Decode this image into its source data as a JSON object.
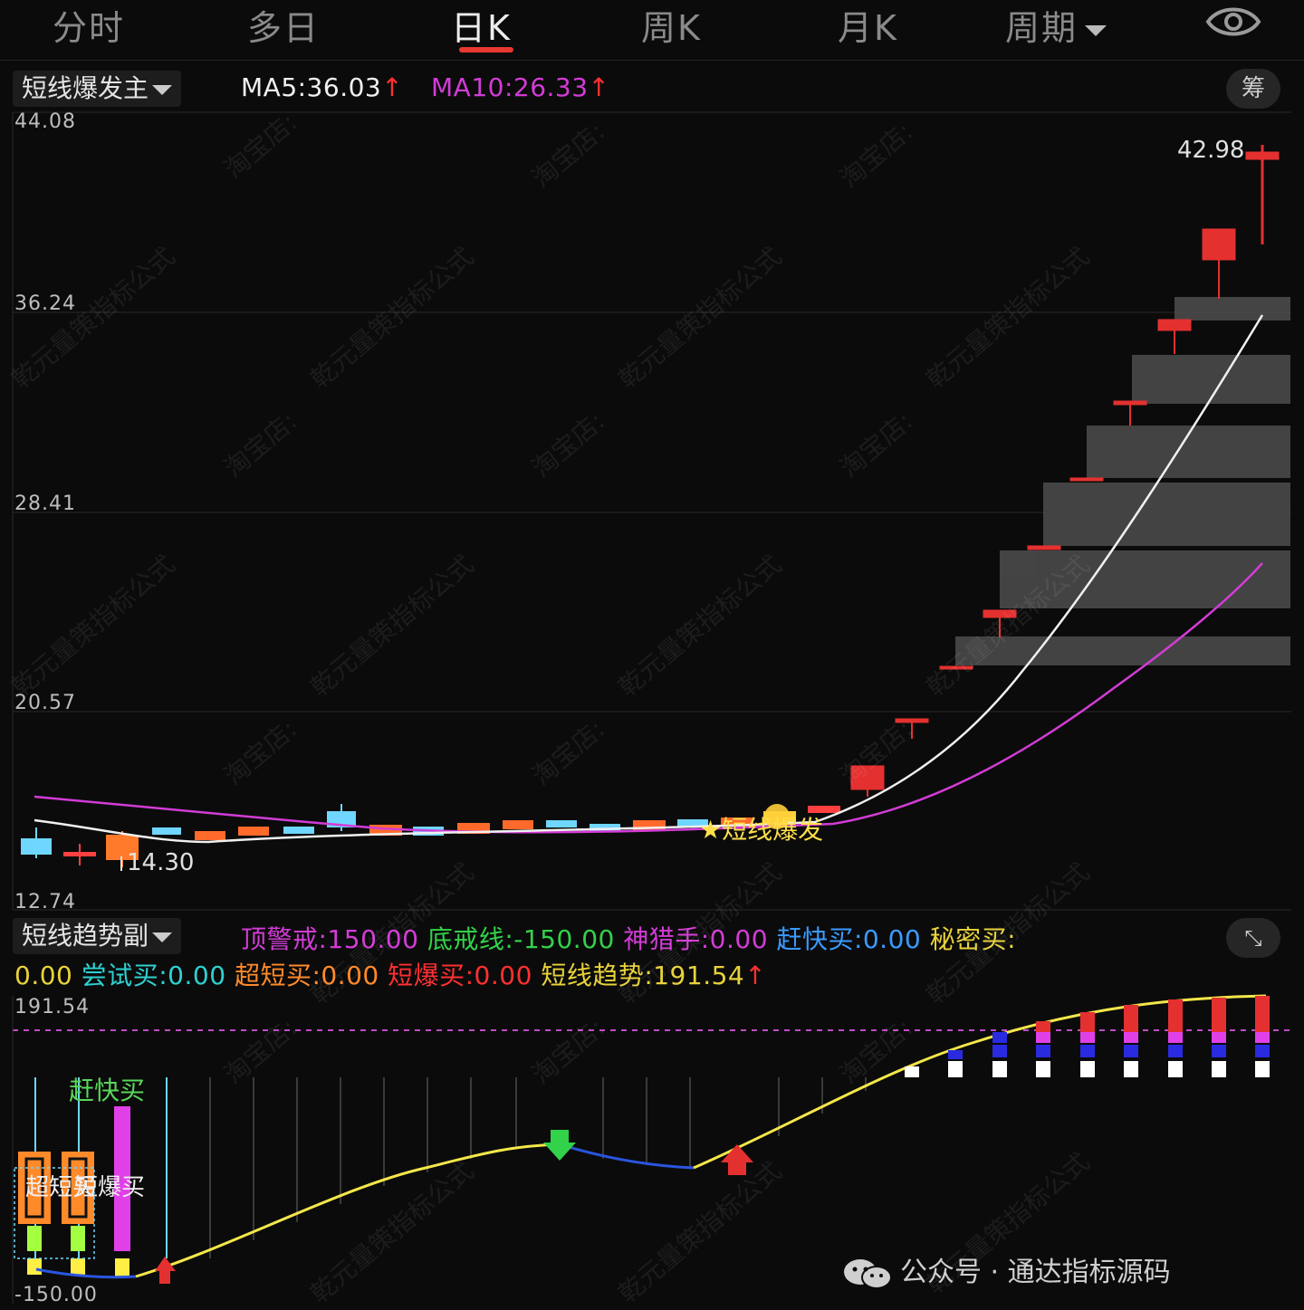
{
  "tabs": [
    "分时",
    "多日",
    "日K",
    "周K",
    "月K",
    "周期"
  ],
  "active_tab": "日K",
  "main_panel": {
    "indicator": "短线爆发主",
    "ma5": "MA5:36.03",
    "ma10": "MA10:26.33",
    "ma5_color": "#f0f0f0",
    "ma10_color": "#d23cd6",
    "chip_button": "筹",
    "y_labels": [
      "44.08",
      "36.24",
      "28.41",
      "20.57",
      "12.74"
    ],
    "high_label": "42.98",
    "low_label": "14.30",
    "signal_label": "★短线爆发"
  },
  "sub_panel": {
    "indicator": "短线趋势副",
    "legend": [
      {
        "text": "顶警戒:150.00",
        "color": "#d23cd6"
      },
      {
        "text": "底戒线:-150.00",
        "color": "#32d24a"
      },
      {
        "text": "神猎手:0.00",
        "color": "#d23cd6"
      },
      {
        "text": "赶快买:0.00",
        "color": "#3a9bff"
      },
      {
        "text": "秘密买:",
        "color": "#e8d23a"
      },
      {
        "text": "0.00",
        "color": "#e8d23a"
      },
      {
        "text": "尝试买:0.00",
        "color": "#2fd0d0"
      },
      {
        "text": "超短买:0.00",
        "color": "#ff8a2a"
      },
      {
        "text": "短爆买:0.00",
        "color": "#ff3030"
      },
      {
        "text": "短线趋势:191.54",
        "color": "#e8d23a"
      }
    ],
    "y_top": "191.54",
    "y_bottom": "-150.00",
    "label_kuaimai": "赶快买",
    "label_chaoduan": "超短买",
    "label_duanbao": "短爆买"
  },
  "footer": {
    "text": "公众号 · 通达指标源码"
  },
  "watermarks": [
    "淘宝店:",
    "乾元量策指标公式"
  ]
}
